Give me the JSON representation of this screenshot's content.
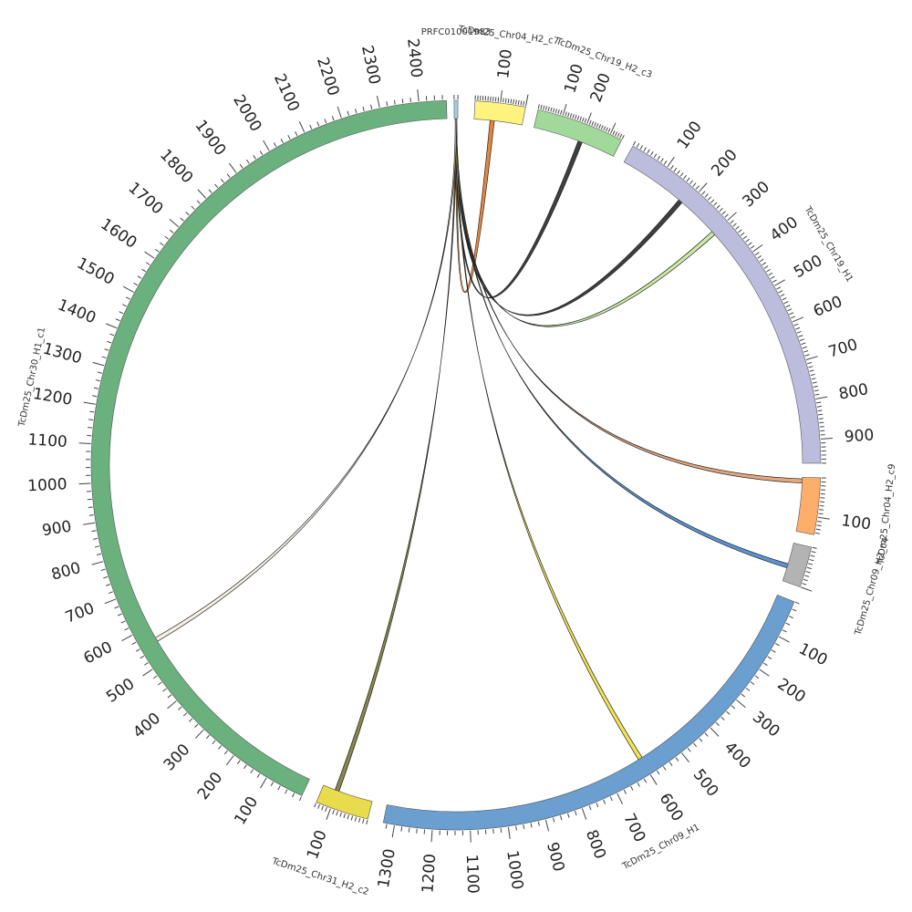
{
  "colors": {
    "link_outline": "#222222",
    "tick": "#444444"
  },
  "segments": [
    {
      "id": "seg-prfc",
      "label": "PRFC01001983",
      "length": 10,
      "color": "#a6cee3"
    },
    {
      "id": "seg-chr04-c7",
      "label": "TcDm25_Chr04_H2_c7",
      "length": 200,
      "color": "#fff380",
      "tick_labels": [
        100
      ]
    },
    {
      "id": "seg-chr19-c3",
      "label": "TcDm25_Chr19_H2_c3",
      "length": 350,
      "color": "#a1d99b",
      "tick_labels": [
        100,
        200
      ]
    },
    {
      "id": "seg-chr19-h1",
      "label": "TcDm25_Chr19_H1",
      "length": 960,
      "color": "#bcbddc",
      "tick_labels": [
        100,
        200,
        300,
        400,
        500,
        600,
        700,
        800,
        900
      ]
    },
    {
      "id": "seg-chr04-c9",
      "label": "TcDm25_Chr04_H2_c9",
      "length": 145,
      "color": "#fdae6b",
      "tick_labels": [
        100
      ]
    },
    {
      "id": "seg-chr09-c4",
      "label": "TcDm25_Chr09_H2_c4",
      "length": 100,
      "color": "#b3b3b3",
      "tick_labels": []
    },
    {
      "id": "seg-chr09-h1",
      "label": "TcDm25_Chr09_H1",
      "length": 1330,
      "color": "#6a9fd0",
      "tick_labels": [
        100,
        200,
        300,
        400,
        500,
        600,
        700,
        800,
        900,
        1000,
        1100,
        1200,
        1300
      ]
    },
    {
      "id": "seg-chr31-c2",
      "label": "TcDm25_Chr31_H2_c2",
      "length": 140,
      "color": "#e8dc4c",
      "tick_labels": [
        100
      ]
    },
    {
      "id": "seg-chr30-c1",
      "label": "TcDm25_Chr30_H1_c1",
      "length": 2470,
      "color": "#6ab17e",
      "tick_labels": [
        100,
        200,
        300,
        400,
        500,
        600,
        700,
        800,
        900,
        1000,
        1100,
        1200,
        1300,
        1400,
        1500,
        1600,
        1700,
        1800,
        1900,
        2000,
        2100,
        2200,
        2300,
        2400
      ]
    }
  ],
  "links": [
    {
      "source": "seg-prfc",
      "target": "seg-chr04-c7",
      "target_pos": 75,
      "color": "#e07a2a"
    },
    {
      "source": "seg-prfc",
      "target": "seg-chr19-c3",
      "target_pos": 200,
      "color": "#2a2a2a"
    },
    {
      "source": "seg-prfc",
      "target": "seg-chr19-h1",
      "target_pos": 180,
      "color": "#2a2a2a"
    },
    {
      "source": "seg-prfc",
      "target": "seg-chr19-h1",
      "target_pos": 300,
      "color": "#c7e89a"
    },
    {
      "source": "seg-prfc",
      "target": "seg-chr04-c9",
      "target_pos": 10,
      "color": "#e0a070"
    },
    {
      "source": "seg-prfc",
      "target": "seg-chr09-c4",
      "target_pos": 60,
      "color": "#4a86c8"
    },
    {
      "source": "seg-prfc",
      "target": "seg-chr09-h1",
      "target_pos": 600,
      "color": "#f0e040"
    },
    {
      "source": "seg-prfc",
      "target": "seg-chr31-c2",
      "target_pos": 100,
      "color": "#7a7a3a"
    },
    {
      "source": "seg-prfc",
      "target": "seg-chr30-c1",
      "target_pos": 560,
      "color": "#f5ede0"
    }
  ]
}
